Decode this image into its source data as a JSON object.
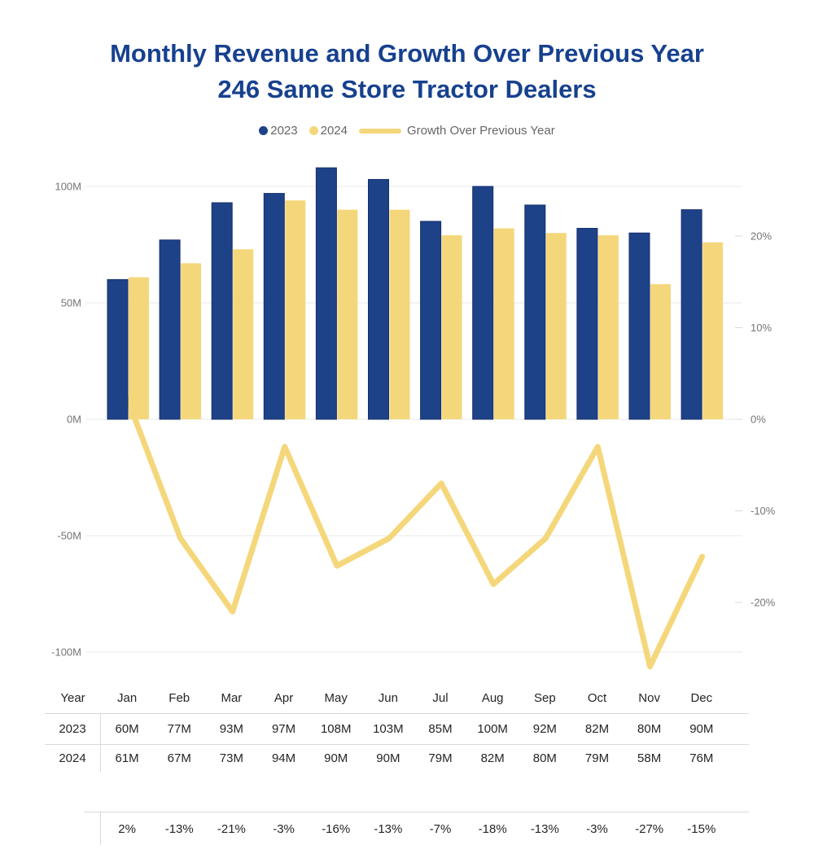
{
  "title": {
    "line1": "Monthly Revenue and Growth Over Previous Year",
    "line2": "246 Same Store Tractor Dealers"
  },
  "legend": {
    "items": [
      {
        "label": "2023",
        "marker": "circle",
        "color_key": "navy"
      },
      {
        "label": "2024",
        "marker": "circle",
        "color_key": "gold"
      },
      {
        "label": "Growth Over Previous Year",
        "marker": "line",
        "color_key": "gold"
      }
    ]
  },
  "colors": {
    "navy": "#1e4288",
    "navy_border": "#142e6d",
    "gold": "#f5d77b",
    "title_blue": "#17418f",
    "grid": "#e9e9e9",
    "border": "#d9d9d9",
    "axis_text": "#757575",
    "legend_text": "#666666",
    "table_text": "#252525"
  },
  "chart_data": {
    "type": "combo",
    "title": "Monthly Revenue and Growth Over Previous Year — 246 Same Store Tractor Dealers",
    "categories": [
      "Jan",
      "Feb",
      "Mar",
      "Apr",
      "May",
      "Jun",
      "Jul",
      "Aug",
      "Sep",
      "Oct",
      "Nov",
      "Dec"
    ],
    "series": [
      {
        "name": "2023",
        "type": "bar",
        "unit": "M",
        "color_key": "navy",
        "values": [
          60,
          77,
          93,
          97,
          108,
          103,
          85,
          100,
          92,
          82,
          80,
          90
        ]
      },
      {
        "name": "2024",
        "type": "bar",
        "unit": "M",
        "color_key": "gold",
        "values": [
          61,
          67,
          73,
          94,
          90,
          90,
          79,
          82,
          80,
          79,
          58,
          76
        ]
      },
      {
        "name": "Growth Over Previous Year",
        "type": "line",
        "unit": "%",
        "color_key": "gold",
        "values": [
          2,
          -13,
          -21,
          -3,
          -16,
          -13,
          -7,
          -18,
          -13,
          -3,
          -27,
          -15
        ]
      }
    ],
    "left_axis": {
      "ticks": [
        "100M",
        "50M",
        "0M",
        "-50M",
        "-100M"
      ],
      "tick_values": [
        100,
        50,
        0,
        -50,
        -100
      ],
      "ylim": [
        -115,
        115
      ]
    },
    "right_axis": {
      "ticks": [
        "20%",
        "10%",
        "0%",
        "-10%",
        "-20%"
      ],
      "tick_values": [
        20,
        10,
        0,
        -10,
        -20
      ],
      "ylim": [
        -29,
        29
      ]
    },
    "grid": true,
    "legend_position": "top"
  },
  "table": {
    "header": [
      "Year",
      "Jan",
      "Feb",
      "Mar",
      "Apr",
      "May",
      "Jun",
      "Jul",
      "Aug",
      "Sep",
      "Oct",
      "Nov",
      "Dec"
    ],
    "rows": [
      {
        "label": "2023",
        "values": [
          "60M",
          "77M",
          "93M",
          "97M",
          "108M",
          "103M",
          "85M",
          "100M",
          "92M",
          "82M",
          "80M",
          "90M"
        ]
      },
      {
        "label": "2024",
        "values": [
          "61M",
          "67M",
          "73M",
          "94M",
          "90M",
          "90M",
          "79M",
          "82M",
          "80M",
          "79M",
          "58M",
          "76M"
        ]
      }
    ],
    "growth_row": {
      "label": "",
      "values": [
        "2%",
        "-13%",
        "-21%",
        "-3%",
        "-16%",
        "-13%",
        "-7%",
        "-18%",
        "-13%",
        "-3%",
        "-27%",
        "-15%"
      ]
    }
  }
}
